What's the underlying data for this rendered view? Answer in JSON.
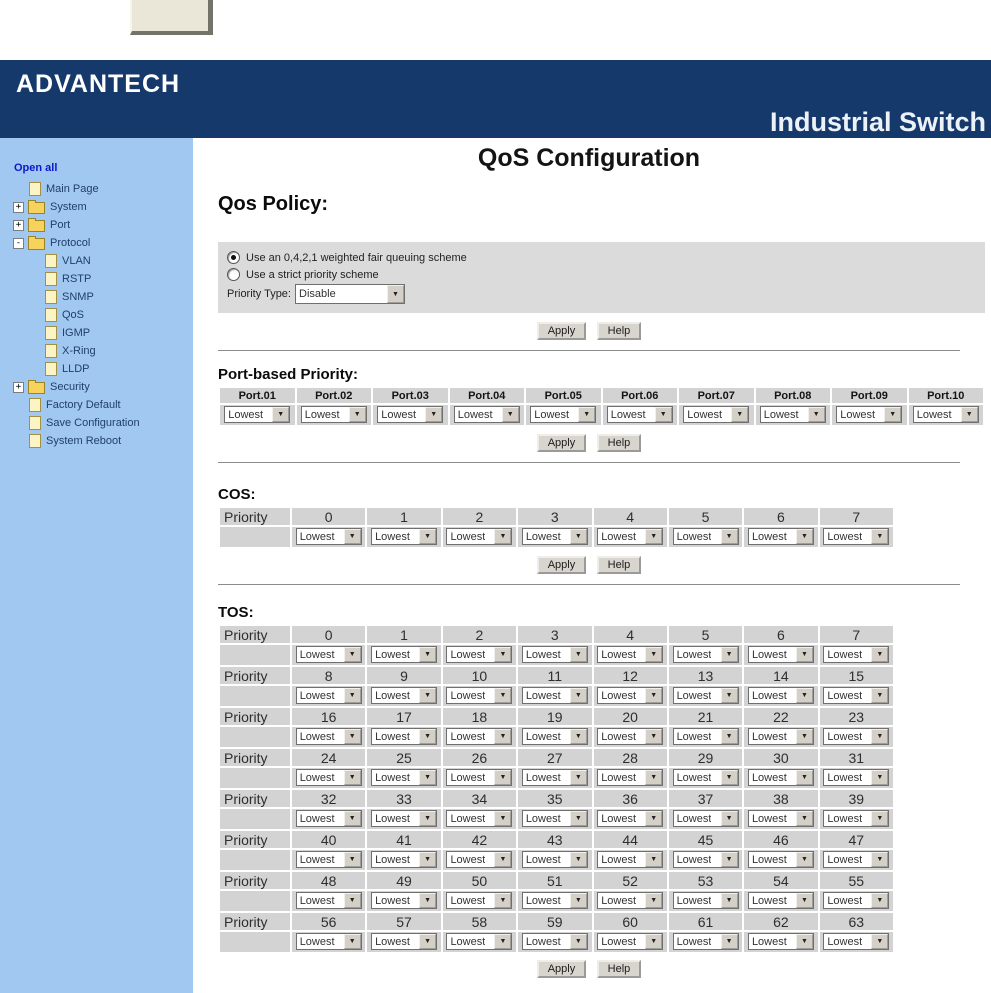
{
  "header": {
    "logo": "ADVANTECH",
    "product": "Industrial Switch"
  },
  "sidebar": {
    "open_all": "Open all",
    "items": [
      {
        "label": "Main Page",
        "icon": "doc",
        "level": 1
      },
      {
        "label": "System",
        "icon": "folder",
        "expander": "+",
        "level": 0
      },
      {
        "label": "Port",
        "icon": "folder",
        "expander": "+",
        "level": 0
      },
      {
        "label": "Protocol",
        "icon": "folder",
        "expander": "-",
        "level": 0
      },
      {
        "label": "VLAN",
        "icon": "doc",
        "level": 2
      },
      {
        "label": "RSTP",
        "icon": "doc",
        "level": 2
      },
      {
        "label": "SNMP",
        "icon": "doc",
        "level": 2
      },
      {
        "label": "QoS",
        "icon": "doc",
        "level": 2
      },
      {
        "label": "IGMP",
        "icon": "doc",
        "level": 2
      },
      {
        "label": "X-Ring",
        "icon": "doc",
        "level": 2
      },
      {
        "label": "LLDP",
        "icon": "doc",
        "level": 2
      },
      {
        "label": "Security",
        "icon": "folder",
        "expander": "+",
        "level": 0
      },
      {
        "label": "Factory Default",
        "icon": "doc",
        "level": 1
      },
      {
        "label": "Save Configuration",
        "icon": "doc",
        "level": 1
      },
      {
        "label": "System Reboot",
        "icon": "doc",
        "level": 1
      }
    ]
  },
  "main": {
    "title": "QoS Configuration",
    "qos_policy": {
      "heading": "Qos Policy:",
      "radio_wfq": "Use an 0,4,2,1 weighted fair queuing scheme",
      "radio_wfq_checked": true,
      "radio_strict": "Use a strict priority scheme",
      "radio_strict_checked": false,
      "priority_type_label": "Priority Type:",
      "priority_type_value": "Disable",
      "apply": "Apply",
      "help": "Help"
    },
    "port_priority": {
      "heading": "Port-based Priority:",
      "ports": [
        "Port.01",
        "Port.02",
        "Port.03",
        "Port.04",
        "Port.05",
        "Port.06",
        "Port.07",
        "Port.08",
        "Port.09",
        "Port.10"
      ],
      "value": "Lowest",
      "apply": "Apply",
      "help": "Help"
    },
    "cos": {
      "heading": "COS:",
      "row_label": "Priority",
      "columns": [
        "0",
        "1",
        "2",
        "3",
        "4",
        "5",
        "6",
        "7"
      ],
      "value": "Lowest",
      "apply": "Apply",
      "help": "Help"
    },
    "tos": {
      "heading": "TOS:",
      "row_label": "Priority",
      "rows": [
        [
          "0",
          "1",
          "2",
          "3",
          "4",
          "5",
          "6",
          "7"
        ],
        [
          "8",
          "9",
          "10",
          "11",
          "12",
          "13",
          "14",
          "15"
        ],
        [
          "16",
          "17",
          "18",
          "19",
          "20",
          "21",
          "22",
          "23"
        ],
        [
          "24",
          "25",
          "26",
          "27",
          "28",
          "29",
          "30",
          "31"
        ],
        [
          "32",
          "33",
          "34",
          "35",
          "36",
          "37",
          "38",
          "39"
        ],
        [
          "40",
          "41",
          "42",
          "43",
          "44",
          "45",
          "46",
          "47"
        ],
        [
          "48",
          "49",
          "50",
          "51",
          "52",
          "53",
          "54",
          "55"
        ],
        [
          "56",
          "57",
          "58",
          "59",
          "60",
          "61",
          "62",
          "63"
        ]
      ],
      "value": "Lowest",
      "apply": "Apply",
      "help": "Help"
    }
  },
  "colors": {
    "header_navy": "#16396b",
    "sidebar_blue": "#a0c8f0",
    "panel_gray": "#dbdbdb",
    "table_cell_gray": "#d3d3d3",
    "button_face": "#d8d5ce",
    "link_blue": "#0a18cd"
  }
}
